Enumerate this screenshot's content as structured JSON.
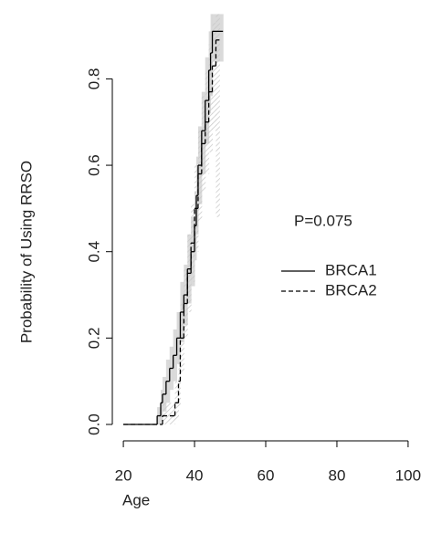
{
  "chart_data": {
    "type": "step",
    "xlabel": "Age",
    "ylabel": "Probability of Using RRSO",
    "annotation": "P=0.075",
    "xlim": [
      16.9,
      103.1
    ],
    "ylim": [
      -0.038,
      0.953
    ],
    "xticks": [
      20,
      40,
      60,
      80,
      100
    ],
    "yticks": [
      {
        "value": 0,
        "label": "0.0"
      },
      {
        "value": 0.2,
        "label": "0.2"
      },
      {
        "value": 0.4,
        "label": "0.4"
      },
      {
        "value": 0.6,
        "label": "0.6"
      },
      {
        "value": 0.8,
        "label": "0.8"
      }
    ],
    "series": [
      {
        "name": "BRCA1",
        "color": "#000000",
        "dash": false,
        "band_color": "#d3d3d3",
        "x": [
          20,
          29.5,
          30.5,
          31,
          32,
          33,
          34,
          35,
          36,
          37,
          38,
          39,
          40,
          40.5,
          41,
          42,
          43,
          44,
          44.5,
          45,
          48
        ],
        "values": [
          0,
          0.02,
          0.05,
          0.07,
          0.1,
          0.13,
          0.16,
          0.2,
          0.26,
          0.3,
          0.36,
          0.4,
          0.46,
          0.53,
          0.6,
          0.68,
          0.75,
          0.82,
          0.86,
          0.91,
          0.91
        ],
        "lower": [
          0,
          0,
          0.01,
          0.03,
          0.05,
          0.08,
          0.1,
          0.14,
          0.19,
          0.23,
          0.28,
          0.32,
          0.38,
          0.44,
          0.51,
          0.58,
          0.65,
          0.72,
          0.76,
          0.84,
          0.84
        ],
        "upper": [
          0,
          0.04,
          0.08,
          0.11,
          0.15,
          0.18,
          0.22,
          0.26,
          0.33,
          0.37,
          0.44,
          0.48,
          0.54,
          0.62,
          0.69,
          0.77,
          0.85,
          0.91,
          0.95,
          0.95,
          0.95
        ]
      },
      {
        "name": "BRCA2",
        "color": "#000000",
        "dash": true,
        "band_color": "#c8c8c8",
        "x": [
          20,
          31,
          34.5,
          35.5,
          36,
          37,
          38,
          39,
          40,
          41,
          42,
          43,
          44,
          45,
          46,
          47
        ],
        "values": [
          0,
          0.02,
          0.05,
          0.1,
          0.2,
          0.28,
          0.35,
          0.42,
          0.5,
          0.58,
          0.65,
          0.7,
          0.77,
          0.83,
          0.89,
          0.89
        ],
        "lower": [
          0,
          0,
          0.01,
          0.04,
          0.12,
          0.2,
          0.26,
          0.33,
          0.4,
          0.47,
          0.54,
          0.58,
          0.63,
          0.68,
          0.48,
          0.48
        ],
        "upper": [
          0,
          0.05,
          0.1,
          0.16,
          0.28,
          0.36,
          0.44,
          0.51,
          0.6,
          0.68,
          0.76,
          0.82,
          0.88,
          0.93,
          0.95,
          0.95
        ]
      }
    ]
  }
}
